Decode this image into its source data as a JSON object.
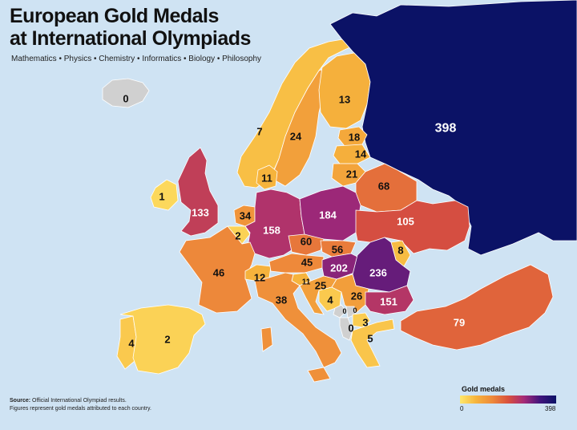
{
  "title_line1": "European Gold Medals",
  "title_line2": "at International Olympiads",
  "subtitle": "Mathematics • Physics • Chemistry • Informatics • Biology • Philosophy",
  "source_label": "Source:",
  "source_text": "Official International Olympiad results.",
  "source_note": "Figures represent gold medals attributed to each country.",
  "legend": {
    "title": "Gold medals",
    "min": "0",
    "max": "398"
  },
  "colors": {
    "sea": "#cfe3f3",
    "no_data": "#d0d0d0",
    "scale": [
      "#ffe86a",
      "#f6b43c",
      "#ee8a3a",
      "#d9513c",
      "#a42a78",
      "#40147c",
      "#0b1266"
    ]
  },
  "countries": [
    {
      "id": "iceland",
      "value": 0
    },
    {
      "id": "norway",
      "value": 7
    },
    {
      "id": "sweden",
      "value": 24
    },
    {
      "id": "finland",
      "value": 13
    },
    {
      "id": "russia",
      "value": 398
    },
    {
      "id": "estonia",
      "value": 18
    },
    {
      "id": "latvia",
      "value": 14
    },
    {
      "id": "lithuania",
      "value": 21
    },
    {
      "id": "denmark",
      "value": 11
    },
    {
      "id": "ireland",
      "value": 1
    },
    {
      "id": "united-kingdom",
      "value": 133
    },
    {
      "id": "belarus",
      "value": 68
    },
    {
      "id": "netherlands",
      "value": 34
    },
    {
      "id": "belgium",
      "value": 2
    },
    {
      "id": "germany",
      "value": 158
    },
    {
      "id": "poland",
      "value": 184
    },
    {
      "id": "ukraine",
      "value": 105
    },
    {
      "id": "czechia",
      "value": 60
    },
    {
      "id": "slovakia",
      "value": 56
    },
    {
      "id": "moldova",
      "value": 8
    },
    {
      "id": "france",
      "value": 46
    },
    {
      "id": "switzerland",
      "value": 12
    },
    {
      "id": "austria",
      "value": 45
    },
    {
      "id": "hungary",
      "value": 202
    },
    {
      "id": "romania",
      "value": 236
    },
    {
      "id": "slovenia",
      "value": 11
    },
    {
      "id": "croatia",
      "value": 25
    },
    {
      "id": "italy",
      "value": 38
    },
    {
      "id": "bosnia",
      "value": 4
    },
    {
      "id": "serbia",
      "value": 26
    },
    {
      "id": "bulgaria",
      "value": 151
    },
    {
      "id": "montenegro",
      "value": 0
    },
    {
      "id": "kosovo",
      "value": 0
    },
    {
      "id": "albania",
      "value": 0
    },
    {
      "id": "north-macedonia",
      "value": 3
    },
    {
      "id": "greece",
      "value": 5
    },
    {
      "id": "turkey",
      "value": 79
    },
    {
      "id": "portugal",
      "value": 4
    },
    {
      "id": "spain",
      "value": 2
    }
  ]
}
